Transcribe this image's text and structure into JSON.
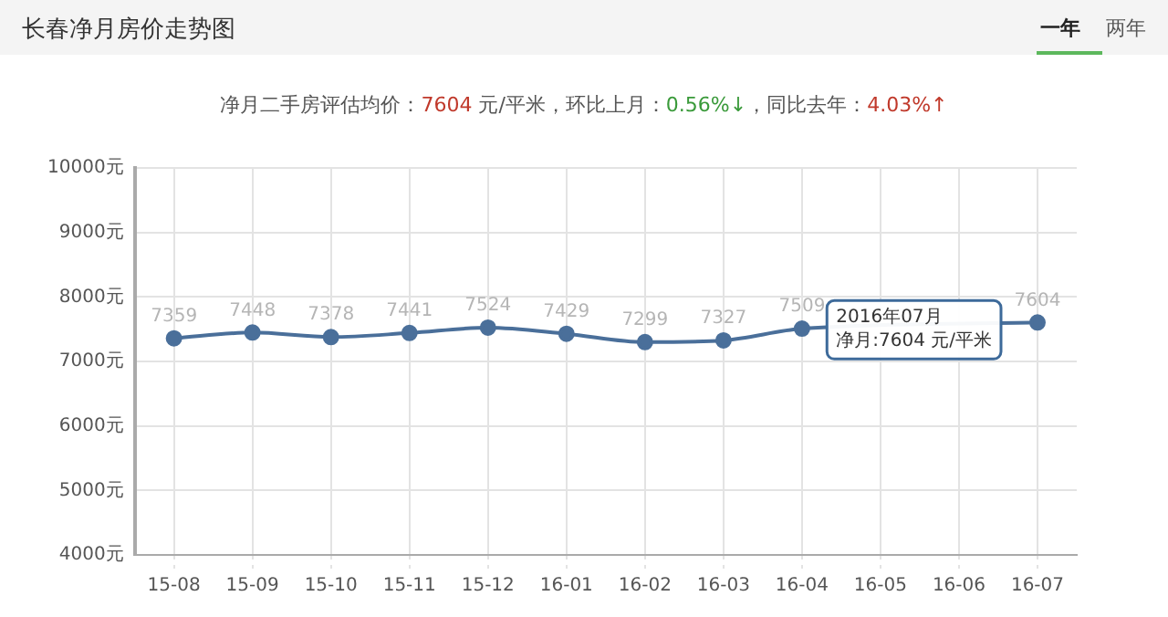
{
  "chart_data": {
    "type": "line",
    "title": "长春净月房价走势图",
    "subtitle": "净月二手房评估均价：7604 元/平米，环比上月：0.56%↓，同比去年：4.03%↑",
    "categories": [
      "15-08",
      "15-09",
      "15-10",
      "15-11",
      "15-12",
      "16-01",
      "16-02",
      "16-03",
      "16-04",
      "16-05",
      "16-06",
      "16-07"
    ],
    "series": [
      {
        "color": "#4a6f9a",
        "values": [
          7359,
          7448,
          7378,
          7441,
          7524,
          7429,
          7299,
          7327,
          7509,
          null,
          null,
          7604
        ]
      }
    ],
    "ylim": [
      4000,
      10000
    ],
    "yticks": [
      {
        "value": 4000,
        "label": "4000元"
      },
      {
        "value": 5000,
        "label": "5000元"
      },
      {
        "value": 6000,
        "label": "6000元"
      },
      {
        "value": 7000,
        "label": "7000元"
      },
      {
        "value": 8000,
        "label": "8000元"
      },
      {
        "value": 9000,
        "label": "9000元"
      },
      {
        "value": 10000,
        "label": "10000元"
      }
    ],
    "grid": true,
    "marker": "circle",
    "line_style": "solid",
    "data_labels": true,
    "legend": false,
    "annotations": [
      "一年",
      "两年",
      "2016年07月",
      "净月:7604 元/平米"
    ]
  }
}
